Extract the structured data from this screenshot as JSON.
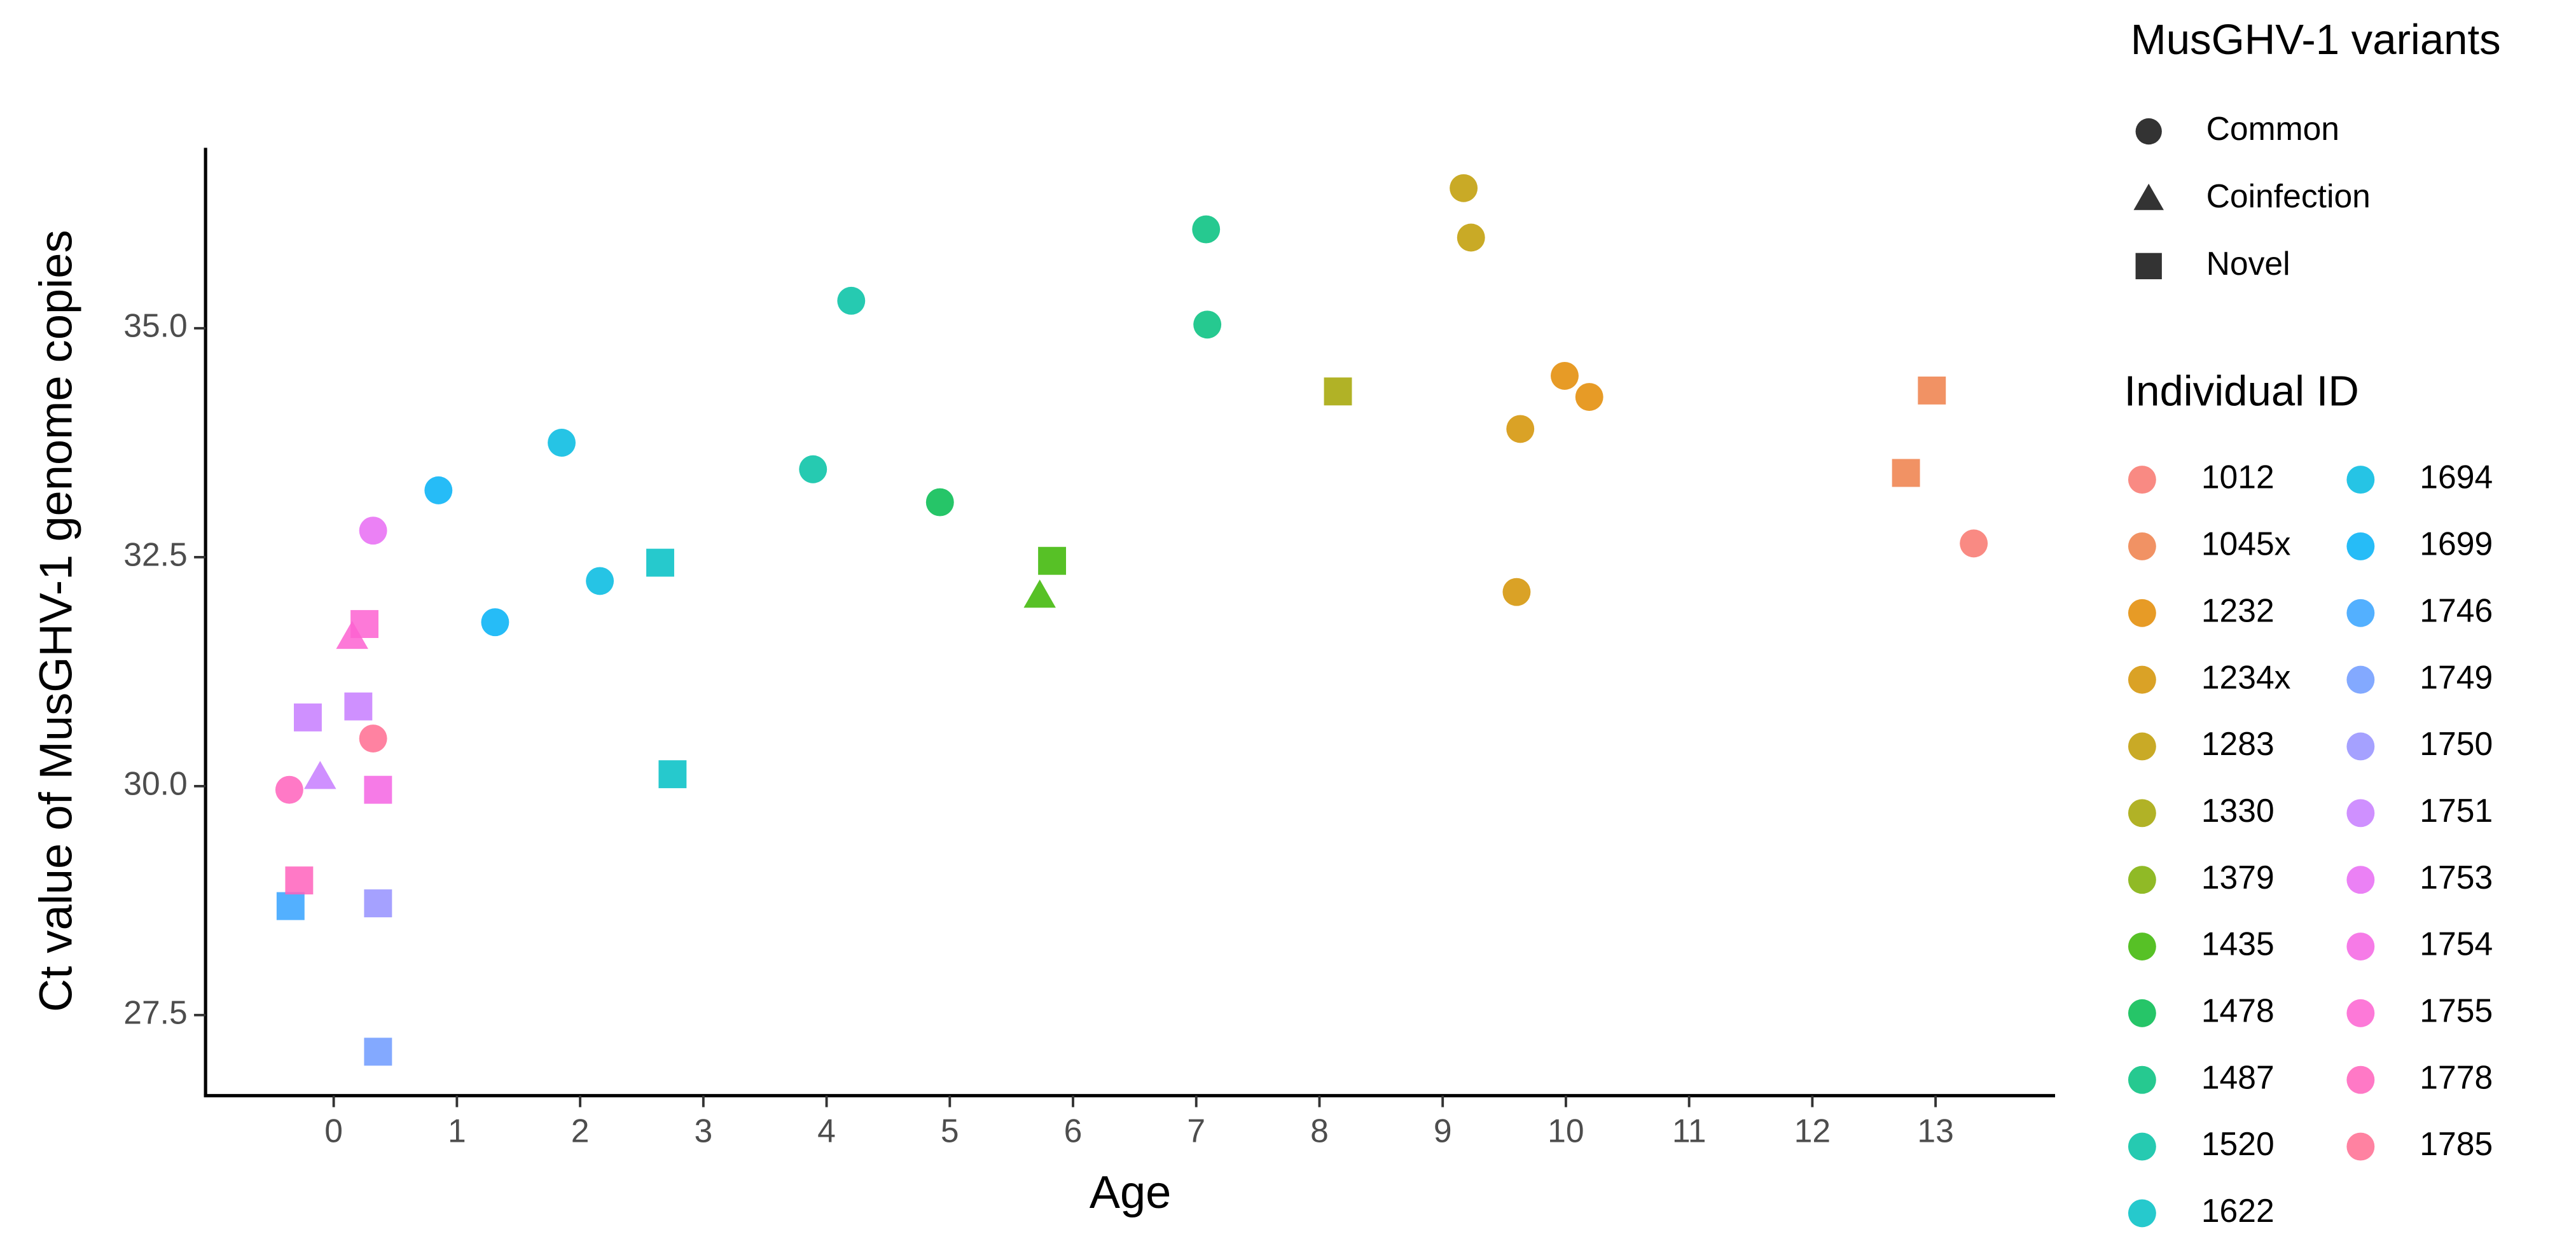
{
  "chart_data": {
    "type": "scatter",
    "xlabel": "Age",
    "ylabel": "Ct value of MusGHV-1 genome copies",
    "xlim": [
      -1.04,
      13.97
    ],
    "ylim": [
      26.62,
      36.97
    ],
    "xticks": [
      0,
      1,
      2,
      3,
      4,
      5,
      6,
      7,
      8,
      9,
      10,
      11,
      12,
      13
    ],
    "yticks": [
      27.5,
      {
        "value": 30,
        "label": "30.0"
      },
      32.5,
      {
        "value": 35,
        "label": "35.0"
      }
    ],
    "grid": false,
    "shape_legend": {
      "title": "MusGHV-1 variants",
      "items": [
        {
          "name": "Common",
          "shape": "circle"
        },
        {
          "name": "Coinfection",
          "shape": "triangle"
        },
        {
          "name": "Novel",
          "shape": "square"
        }
      ]
    },
    "color_legend_title": "Individual ID",
    "series": [
      {
        "name": "1012",
        "color": "#F8766D",
        "x": [
          13.31
        ],
        "values": [
          32.65
        ],
        "variant": [
          "Common"
        ]
      },
      {
        "name": "1045x",
        "color": "#EF7F49",
        "x": [
          12.97,
          12.76
        ],
        "values": [
          34.32,
          33.42
        ],
        "variant": [
          "Novel",
          "Novel"
        ]
      },
      {
        "name": "1232",
        "color": "#E38900",
        "x": [
          9.99,
          10.19
        ],
        "values": [
          34.48,
          34.25
        ],
        "variant": [
          "Common",
          "Common"
        ]
      },
      {
        "name": "1234x",
        "color": "#D39200",
        "x": [
          9.63,
          9.6
        ],
        "values": [
          33.9,
          32.12
        ],
        "variant": [
          "Common",
          "Common"
        ]
      },
      {
        "name": "1283",
        "color": "#C09B00",
        "x": [
          9.17,
          9.23
        ],
        "values": [
          36.53,
          35.99
        ],
        "variant": [
          "Common",
          "Common"
        ]
      },
      {
        "name": "1330",
        "color": "#A3A500",
        "x": [
          8.15
        ],
        "values": [
          34.31
        ],
        "variant": [
          "Novel"
        ]
      },
      {
        "name": "1379",
        "color": "#7CAE00",
        "x": [],
        "values": [],
        "variant": []
      },
      {
        "name": "1435",
        "color": "#39B600",
        "x": [
          5.83,
          5.73
        ],
        "values": [
          32.46,
          32.08
        ],
        "variant": [
          "Novel",
          "Coinfection"
        ]
      },
      {
        "name": "1478",
        "color": "#00BB4E",
        "x": [
          4.92
        ],
        "values": [
          33.1
        ],
        "variant": [
          "Common"
        ]
      },
      {
        "name": "1487",
        "color": "#00BF7D",
        "x": [
          7.08,
          7.09
        ],
        "values": [
          36.08,
          35.04
        ],
        "variant": [
          "Common",
          "Common"
        ]
      },
      {
        "name": "1520",
        "color": "#00C1A3",
        "x": [
          4.2,
          3.89
        ],
        "values": [
          35.3,
          33.46
        ],
        "variant": [
          "Common",
          "Common"
        ]
      },
      {
        "name": "1622",
        "color": "#00BFC4",
        "x": [
          2.65,
          2.75
        ],
        "values": [
          32.44,
          30.13
        ],
        "variant": [
          "Novel",
          "Novel"
        ]
      },
      {
        "name": "1694",
        "color": "#00BAE0",
        "x": [
          1.85,
          2.16
        ],
        "values": [
          33.75,
          32.24
        ],
        "variant": [
          "Common",
          "Common"
        ]
      },
      {
        "name": "1699",
        "color": "#00B0F6",
        "x": [
          0.85,
          1.31
        ],
        "values": [
          33.23,
          31.79
        ],
        "variant": [
          "Common",
          "Common"
        ]
      },
      {
        "name": "1746",
        "color": "#35A2FF",
        "x": [
          -0.35
        ],
        "values": [
          28.69
        ],
        "variant": [
          "Novel"
        ]
      },
      {
        "name": "1749",
        "color": "#6D9AFF",
        "x": [
          0.36
        ],
        "values": [
          27.1
        ],
        "variant": [
          "Novel"
        ]
      },
      {
        "name": "1750",
        "color": "#9590FF",
        "x": [
          0.36
        ],
        "values": [
          28.72
        ],
        "variant": [
          "Novel"
        ]
      },
      {
        "name": "1751",
        "color": "#C77CFF",
        "x": [
          -0.21,
          0.2,
          -0.11
        ],
        "values": [
          30.75,
          30.87,
          30.1
        ],
        "variant": [
          "Novel",
          "Novel",
          "Coinfection"
        ]
      },
      {
        "name": "1753",
        "color": "#E76BF3",
        "x": [
          0.32
        ],
        "values": [
          32.79
        ],
        "variant": [
          "Common"
        ]
      },
      {
        "name": "1754",
        "color": "#F564E3",
        "x": [
          0.36
        ],
        "values": [
          29.96
        ],
        "variant": [
          "Novel"
        ]
      },
      {
        "name": "1755",
        "color": "#FD61D1",
        "x": [
          0.15,
          0.25
        ],
        "values": [
          31.63,
          31.77
        ],
        "variant": [
          "Coinfection",
          "Novel"
        ]
      },
      {
        "name": "1778",
        "color": "#FF62BC",
        "x": [
          -0.36,
          -0.28
        ],
        "values": [
          29.96,
          28.97
        ],
        "variant": [
          "Common",
          "Novel"
        ]
      },
      {
        "name": "1785",
        "color": "#FF6C91",
        "x": [
          0.32
        ],
        "values": [
          30.52
        ],
        "variant": [
          "Common"
        ]
      }
    ]
  }
}
